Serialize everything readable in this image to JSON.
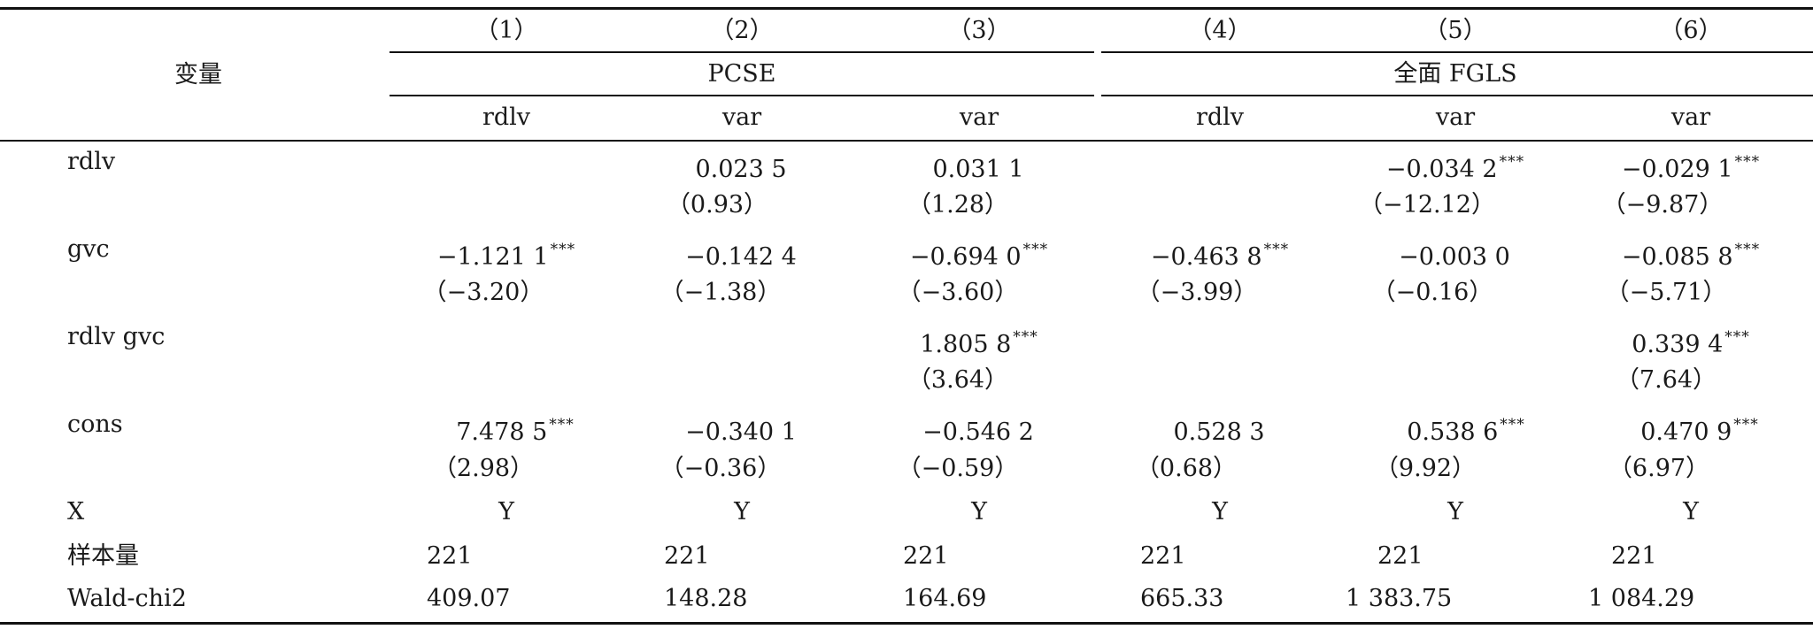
{
  "table": {
    "stub_header": "变量",
    "col_numbers": [
      "（1）",
      "（2）",
      "（3）",
      "（4）",
      "（5）",
      "（6）"
    ],
    "group_headers": [
      "PCSE",
      "全面 FGLS"
    ],
    "dep_vars": [
      "rdlv",
      "var",
      "var",
      "rdlv",
      "var",
      "var"
    ],
    "rows": [
      {
        "label": "rdlv",
        "coef": [
          "",
          "0.023 5",
          "0.031 1",
          "",
          "−0.034 2",
          "−0.029 1"
        ],
        "sig": [
          "",
          "",
          "",
          "",
          "***",
          "***"
        ],
        "t": [
          "",
          "（0.93）",
          "（1.28）",
          "",
          "（−12.12）",
          "（−9.87）"
        ]
      },
      {
        "label": "gvc",
        "coef": [
          "−1.121 1",
          "−0.142 4",
          "−0.694 0",
          "−0.463 8",
          "−0.003 0",
          "−0.085 8"
        ],
        "sig": [
          "***",
          "",
          "***",
          "***",
          "",
          "***"
        ],
        "t": [
          "（−3.20）",
          "（−1.38）",
          "（−3.60）",
          "（−3.99）",
          "（−0.16）",
          "（−5.71）"
        ]
      },
      {
        "label": "rdlv gvc",
        "coef": [
          "",
          "",
          "1.805 8",
          "",
          "",
          "0.339 4"
        ],
        "sig": [
          "",
          "",
          "***",
          "",
          "",
          "***"
        ],
        "t": [
          "",
          "",
          "（3.64）",
          "",
          "",
          "（7.64）"
        ]
      },
      {
        "label": "cons",
        "coef": [
          "7.478 5",
          "−0.340 1",
          "−0.546 2",
          "0.528 3",
          "0.538 6",
          "0.470 9"
        ],
        "sig": [
          "***",
          "",
          "",
          "",
          "***",
          "***"
        ],
        "t": [
          "（2.98）",
          "（−0.36）",
          "（−0.59）",
          "（0.68）",
          "（9.92）",
          "（6.97）"
        ]
      }
    ],
    "x_row": {
      "label": "X",
      "values": [
        "Y",
        "Y",
        "Y",
        "Y",
        "Y",
        "Y"
      ]
    },
    "n_row": {
      "label": "样本量",
      "values": [
        "221",
        "221",
        "221",
        "221",
        "221",
        "221"
      ]
    },
    "wald_row": {
      "label": "Wald-chi2",
      "values": [
        "409.07",
        "148.28",
        "164.69",
        "665.33",
        "1 383.75",
        "1 084.29"
      ]
    }
  }
}
